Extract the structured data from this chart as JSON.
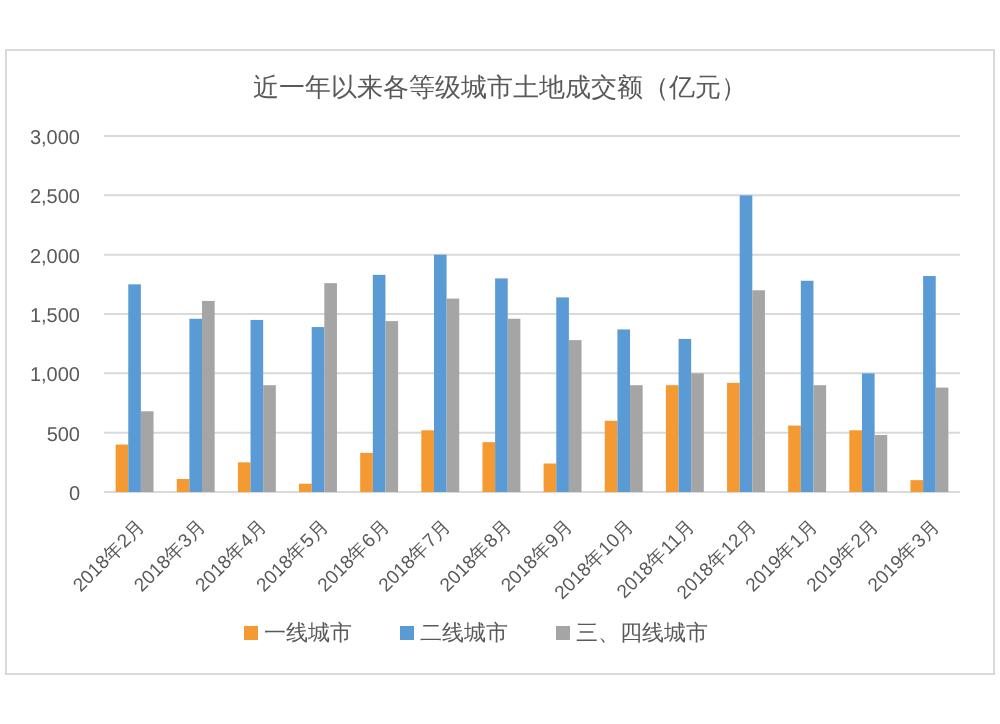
{
  "chart_data": {
    "type": "bar",
    "title": "近一年以来各等级城市土地成交额（亿元）",
    "categories": [
      "2018年2月",
      "2018年3月",
      "2018年4月",
      "2018年5月",
      "2018年6月",
      "2018年7月",
      "2018年8月",
      "2018年9月",
      "2018年10月",
      "2018年11月",
      "2018年12月",
      "2019年1月",
      "2019年2月",
      "2019年3月"
    ],
    "series": [
      {
        "name": "一线城市",
        "color": "#f59a33",
        "values": [
          400,
          110,
          250,
          70,
          330,
          520,
          420,
          240,
          600,
          900,
          920,
          560,
          520,
          100
        ]
      },
      {
        "name": "二线城市",
        "color": "#5b9bd5",
        "values": [
          1750,
          1460,
          1450,
          1390,
          1830,
          2000,
          1800,
          1640,
          1370,
          1290,
          2500,
          1780,
          1000,
          1820
        ]
      },
      {
        "name": "三、四线城市",
        "color": "#a5a5a5",
        "values": [
          680,
          1610,
          900,
          1760,
          1440,
          1630,
          1460,
          1280,
          900,
          1000,
          1700,
          900,
          480,
          880
        ]
      }
    ],
    "ylim": [
      0,
      3000
    ],
    "yticks": [
      {
        "value": 0,
        "label": "0"
      },
      {
        "value": 500,
        "label": "500"
      },
      {
        "value": 1000,
        "label": "1,000"
      },
      {
        "value": 1500,
        "label": "1,500"
      },
      {
        "value": 2000,
        "label": "2,000"
      },
      {
        "value": 2500,
        "label": "2,500"
      },
      {
        "value": 3000,
        "label": "3,000"
      }
    ],
    "grid": "y",
    "legend": "bottom"
  }
}
